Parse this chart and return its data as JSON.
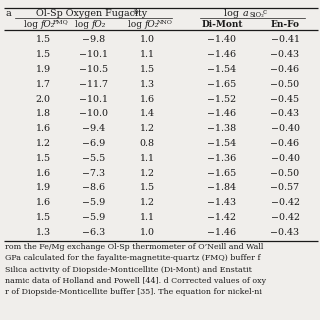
{
  "rows": [
    [
      "1.5",
      "-9.8",
      "1.0",
      "-1.40",
      "-0.41"
    ],
    [
      "1.5",
      "-10.1",
      "1.1",
      "-1.46",
      "-0.43"
    ],
    [
      "1.9",
      "-10.5",
      "1.5",
      "-1.54",
      "-0.46"
    ],
    [
      "1.7",
      "-11.7",
      "1.3",
      "-1.65",
      "-0.50"
    ],
    [
      "2.0",
      "-10.1",
      "1.6",
      "-1.52",
      "-0.45"
    ],
    [
      "1.8",
      "-10.0",
      "1.4",
      "-1.46",
      "-0.43"
    ],
    [
      "1.6",
      "-9.4",
      "1.2",
      "-1.38",
      "-0.40"
    ],
    [
      "1.2",
      "-6.9",
      "0.8",
      "-1.54",
      "-0.46"
    ],
    [
      "1.5",
      "-5.5",
      "1.1",
      "-1.36",
      "-0.40"
    ],
    [
      "1.6",
      "-7.3",
      "1.2",
      "-1.65",
      "-0.50"
    ],
    [
      "1.9",
      "-8.6",
      "1.5",
      "-1.84",
      "-0.57"
    ],
    [
      "1.6",
      "-5.9",
      "1.2",
      "-1.43",
      "-0.42"
    ],
    [
      "1.5",
      "-5.9",
      "1.1",
      "-1.42",
      "-0.42"
    ],
    [
      "1.3",
      "-6.3",
      "1.0",
      "-1.46",
      "-0.43"
    ]
  ],
  "footnote_lines": [
    "rom the Fe/Mg exchange Ol-Sp thermometer of O’Neill and Wall",
    "GPa calculated for the fayalite-magnetite-quartz (FMQ) buffer f",
    "Silica activity of Diopside-Monticellite (Di-Mont) and Enstatit",
    "namic data of Holland and Powell [44]. d Corrected values of oxy",
    "r of Diopside-Monticellite buffer [35]. The equation for nickel-ni"
  ],
  "bg_color": "#f0eeeb",
  "text_color": "#1a1a1a",
  "line_color": "#1a1a1a"
}
